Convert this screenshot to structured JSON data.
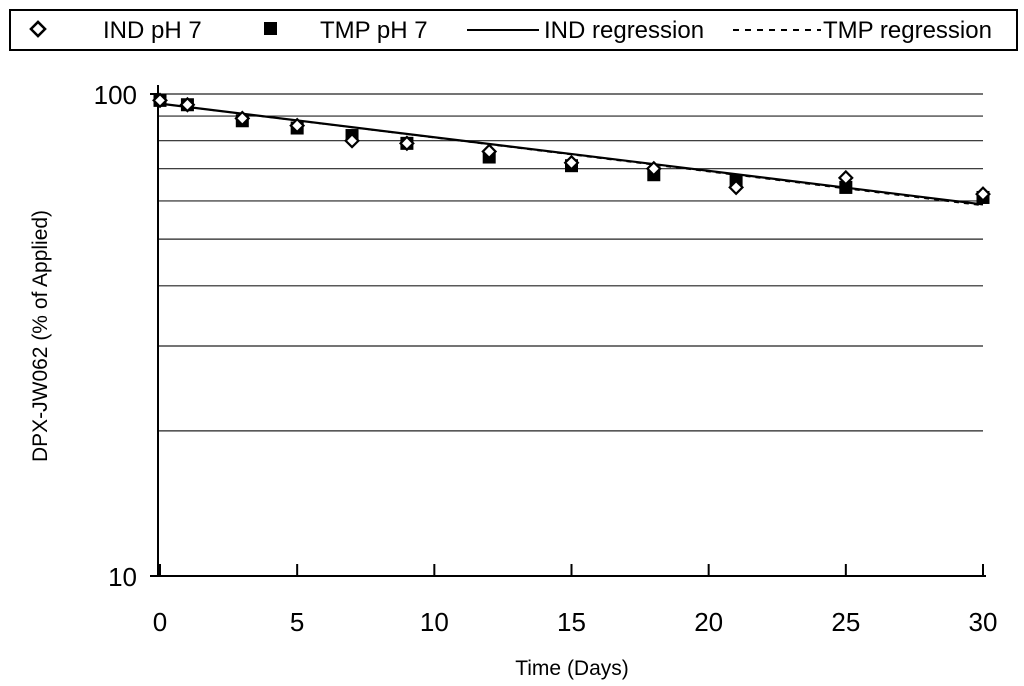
{
  "chart_data": {
    "type": "scatter",
    "title": "",
    "xlabel": "Time (Days)",
    "ylabel": "DPX-JW062 (% of Applied)",
    "xlim": [
      0,
      30
    ],
    "ylim": [
      10,
      100
    ],
    "y_scale": "log",
    "grid": "horizontal",
    "legend_position": "top",
    "x_ticks": [
      "0",
      "5",
      "10",
      "15",
      "20",
      "25",
      "30"
    ],
    "y_ticks": [
      "10",
      "100"
    ],
    "y_gridlines": [
      20,
      30,
      40,
      50,
      60,
      70,
      80,
      90,
      100
    ],
    "legend": {
      "ind_points": "IND pH 7",
      "tmp_points": "TMP pH 7",
      "ind_line": "IND regression",
      "tmp_line": "TMP regression"
    },
    "series": [
      {
        "name": "IND pH 7",
        "marker": "open-diamond",
        "x": [
          0,
          1,
          3,
          5,
          7,
          9,
          12,
          15,
          18,
          21,
          25,
          30
        ],
        "y": [
          97,
          95,
          89,
          86,
          80,
          79,
          76,
          72,
          70,
          64,
          67,
          62
        ]
      },
      {
        "name": "TMP pH 7",
        "marker": "filled-square",
        "x": [
          0,
          1,
          3,
          5,
          7,
          9,
          12,
          15,
          18,
          21,
          25,
          30
        ],
        "y": [
          97,
          95,
          88,
          85,
          82,
          79,
          74,
          71,
          68,
          66,
          64,
          61
        ]
      },
      {
        "name": "IND regression",
        "style": "solid",
        "x": [
          0,
          30
        ],
        "y": [
          95.5,
          59
        ]
      },
      {
        "name": "TMP regression",
        "style": "dashed",
        "x": [
          0,
          30
        ],
        "y": [
          95.5,
          58.7
        ]
      }
    ]
  }
}
